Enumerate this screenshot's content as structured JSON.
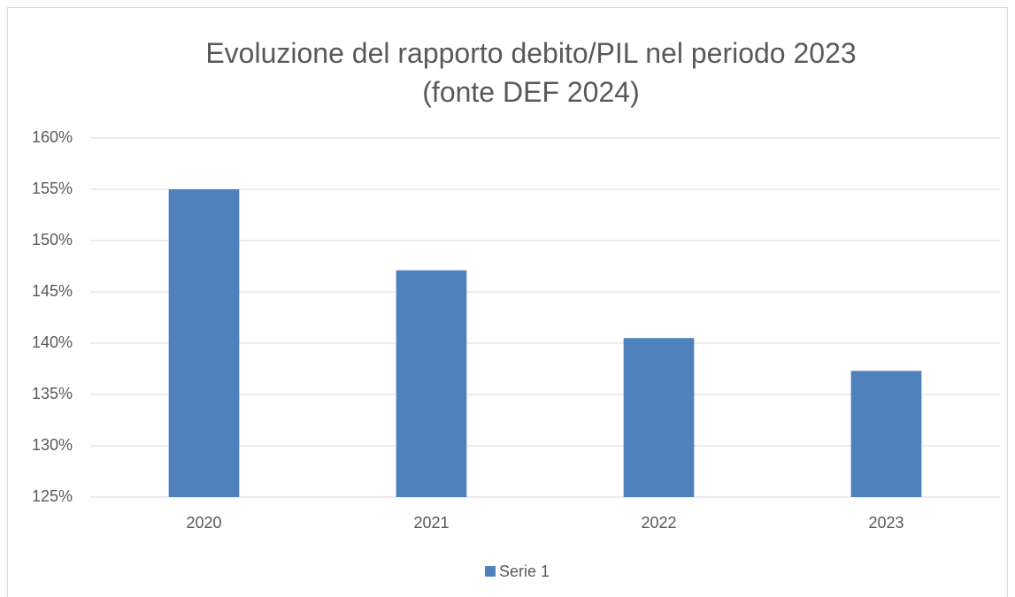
{
  "chart_data": {
    "type": "bar",
    "title": "Evoluzione del rapporto debito/PIL nel periodo 2023 (fonte DEF 2024)",
    "categories": [
      "2020",
      "2021",
      "2022",
      "2023"
    ],
    "series": [
      {
        "name": "Serie 1",
        "color": "#4f81bd",
        "values": [
          155.0,
          147.1,
          140.5,
          137.3
        ]
      }
    ],
    "ylim": [
      125,
      160
    ],
    "yticks": [
      {
        "value": 125,
        "label": "125%"
      },
      {
        "value": 130,
        "label": "130%"
      },
      {
        "value": 135,
        "label": "135%"
      },
      {
        "value": 140,
        "label": "140%"
      },
      {
        "value": 145,
        "label": "145%"
      },
      {
        "value": 150,
        "label": "150%"
      },
      {
        "value": 155,
        "label": "155%"
      },
      {
        "value": 160,
        "label": "160%"
      }
    ],
    "grid": true,
    "legend": "bottom"
  }
}
